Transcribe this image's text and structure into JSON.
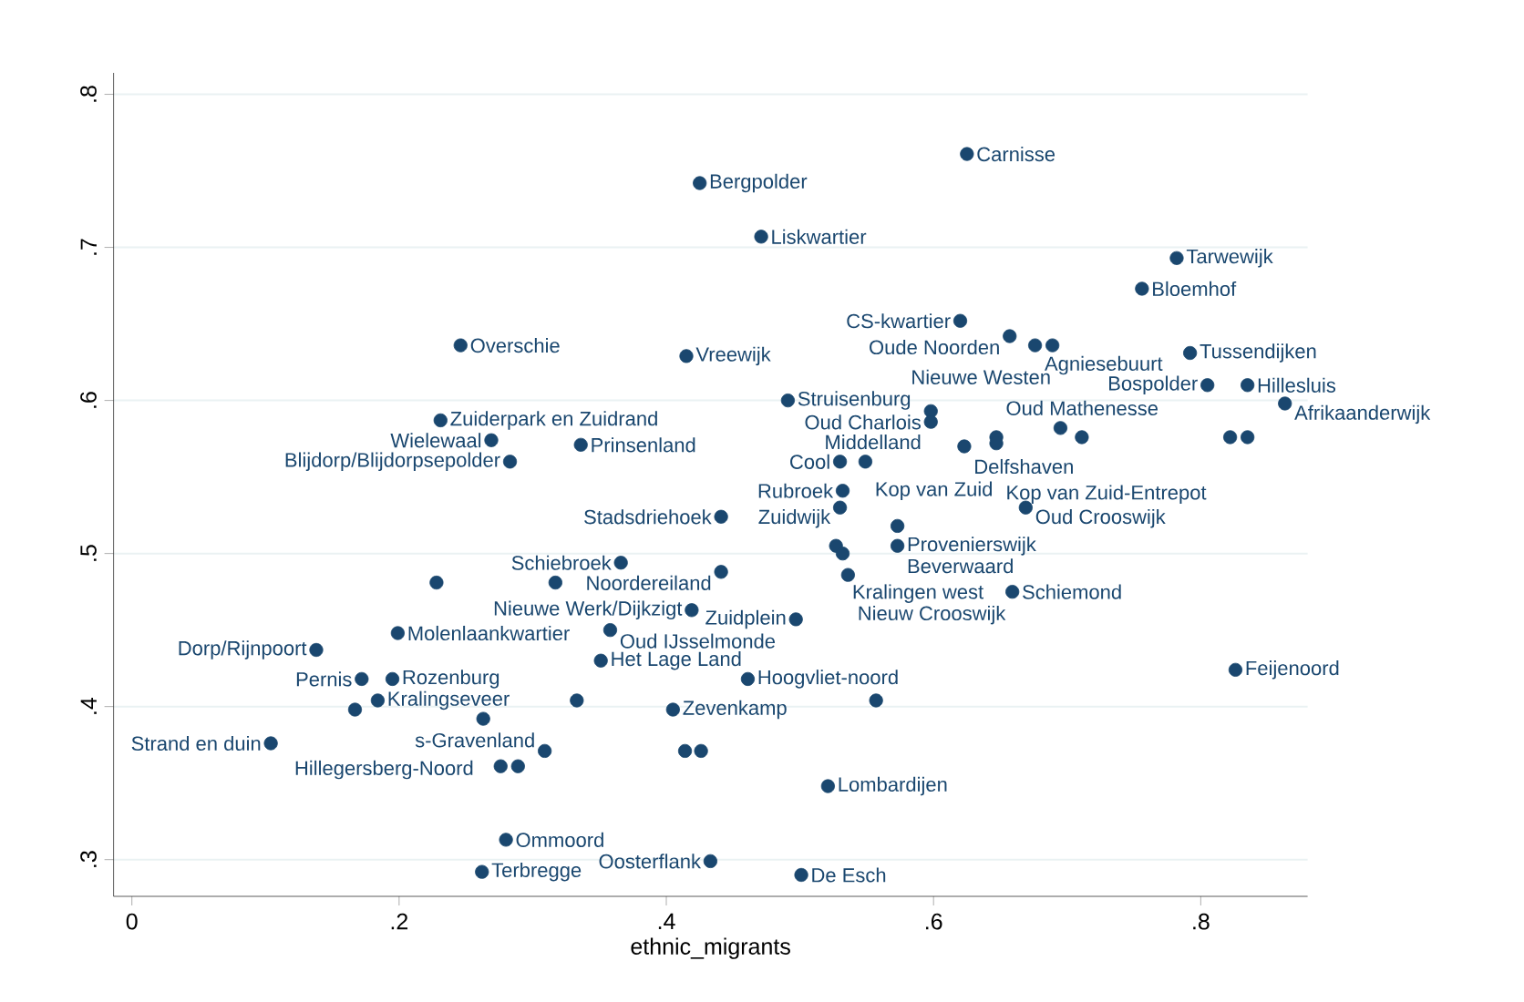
{
  "chart_data": {
    "type": "scatter",
    "xlabel": "ethnic_migrants",
    "grid": "y",
    "xlim": [
      -0.0137,
      0.88
    ],
    "ylim": [
      0.276,
      0.814
    ],
    "xticks": [
      {
        "value": 0,
        "label": "0"
      },
      {
        "value": 0.2,
        "label": ".2"
      },
      {
        "value": 0.4,
        "label": ".4"
      },
      {
        "value": 0.6,
        "label": ".6"
      },
      {
        "value": 0.8,
        "label": ".8"
      }
    ],
    "yticks": [
      {
        "value": 0.3,
        "label": ".3"
      },
      {
        "value": 0.4,
        "label": ".4"
      },
      {
        "value": 0.5,
        "label": ".5"
      },
      {
        "value": 0.6,
        "label": ".6"
      },
      {
        "value": 0.7,
        "label": ".7"
      },
      {
        "value": 0.8,
        "label": ".8"
      }
    ],
    "series": [
      {
        "color": "#1a476f",
        "x": [
          0.625,
          0.425,
          0.471,
          0.782,
          0.756,
          0.62,
          0.246,
          0.415,
          0.657,
          0.676,
          0.689,
          0.792,
          0.805,
          0.835,
          0.863,
          0.491,
          0.598,
          0.598,
          0.623,
          0.647,
          0.647,
          0.695,
          0.711,
          0.822,
          0.835,
          0.53,
          0.549,
          0.231,
          0.269,
          0.336,
          0.283,
          0.532,
          0.53,
          0.669,
          0.441,
          0.573,
          0.527,
          0.532,
          0.573,
          0.366,
          0.441,
          0.536,
          0.228,
          0.317,
          0.659,
          0.419,
          0.497,
          0.199,
          0.358,
          0.138,
          0.351,
          0.826,
          0.172,
          0.195,
          0.461,
          0.184,
          0.333,
          0.557,
          0.167,
          0.405,
          0.263,
          0.104,
          0.309,
          0.414,
          0.426,
          0.276,
          0.289,
          0.521,
          0.28,
          0.433,
          0.262,
          0.501
        ],
        "values": [
          0.761,
          0.742,
          0.707,
          0.693,
          0.673,
          0.652,
          0.636,
          0.629,
          0.642,
          0.636,
          0.636,
          0.631,
          0.61,
          0.61,
          0.598,
          0.6,
          0.593,
          0.586,
          0.57,
          0.576,
          0.572,
          0.582,
          0.576,
          0.576,
          0.576,
          0.56,
          0.56,
          0.587,
          0.574,
          0.571,
          0.56,
          0.541,
          0.53,
          0.53,
          0.524,
          0.518,
          0.505,
          0.5,
          0.505,
          0.494,
          0.488,
          0.486,
          0.481,
          0.481,
          0.475,
          0.463,
          0.457,
          0.448,
          0.45,
          0.437,
          0.43,
          0.424,
          0.418,
          0.418,
          0.418,
          0.404,
          0.404,
          0.404,
          0.398,
          0.398,
          0.392,
          0.376,
          0.371,
          0.371,
          0.371,
          0.361,
          0.361,
          0.348,
          0.313,
          0.299,
          0.292,
          0.29
        ]
      }
    ],
    "annotations": [
      {
        "text": "Carnisse",
        "x": 0.625,
        "y": 0.761
      },
      {
        "text": "Bergpolder",
        "x": 0.425,
        "y": 0.742
      },
      {
        "text": "Liskwartier",
        "x": 0.471,
        "y": 0.707
      },
      {
        "text": "Tarwewijk",
        "x": 0.782,
        "y": 0.693
      },
      {
        "text": "Bloemhof",
        "x": 0.756,
        "y": 0.673
      },
      {
        "text": "CS-kwartier",
        "x": 0.62,
        "y": 0.652
      },
      {
        "text": "Overschie",
        "x": 0.246,
        "y": 0.636
      },
      {
        "text": "Vreewijk",
        "x": 0.415,
        "y": 0.629
      },
      {
        "text": "Oude Noorden",
        "x": 0.657,
        "y": 0.642
      },
      {
        "text": "Agniesebuurt",
        "x": 0.676,
        "y": 0.636
      },
      {
        "text": "Delfshaven",
        "x": 0.623,
        "y": 0.57
      },
      {
        "text": "Oud Mathenesse",
        "x": 0.647,
        "y": 0.576
      },
      {
        "text": "Kop van Zuid-Entrepot",
        "x": 0.647,
        "y": 0.572
      },
      {
        "text": "Pernis",
        "x": 0.172,
        "y": 0.418
      },
      {
        "text": "Zevenkamp",
        "x": 0.405,
        "y": 0.398
      },
      {
        "text": "s-Gravenland",
        "x": 0.309,
        "y": 0.371
      },
      {
        "text": "Tussendijken",
        "x": 0.792,
        "y": 0.631
      },
      {
        "text": "Bospolder",
        "x": 0.805,
        "y": 0.61
      },
      {
        "text": "Hillesluis",
        "x": 0.835,
        "y": 0.61
      },
      {
        "text": "Afrikaanderwijk",
        "x": 0.863,
        "y": 0.598
      },
      {
        "text": "Struisenburg",
        "x": 0.491,
        "y": 0.6
      },
      {
        "text": "Oud Charlois",
        "x": 0.598,
        "y": 0.593
      },
      {
        "text": "Middelland",
        "x": 0.598,
        "y": 0.586
      },
      {
        "text": "Nieuwe Westen",
        "x": 0.695,
        "y": 0.582
      },
      {
        "text": "Cool",
        "x": 0.53,
        "y": 0.56
      },
      {
        "text": "Kop van Zuid",
        "x": 0.549,
        "y": 0.56
      },
      {
        "text": "Zuiderpark en Zuidrand",
        "x": 0.231,
        "y": 0.587
      },
      {
        "text": "Wielewaal",
        "x": 0.269,
        "y": 0.574
      },
      {
        "text": "Prinsenland",
        "x": 0.336,
        "y": 0.571
      },
      {
        "text": "Blijdorp/Blijdorpsepolder",
        "x": 0.283,
        "y": 0.56
      },
      {
        "text": "Rubroek",
        "x": 0.532,
        "y": 0.541
      },
      {
        "text": "Zuidwijk",
        "x": 0.53,
        "y": 0.53
      },
      {
        "text": "Oud Crooswijk",
        "x": 0.669,
        "y": 0.53
      },
      {
        "text": "Stadsdriehoek",
        "x": 0.441,
        "y": 0.524
      },
      {
        "text": "Provenierswijk",
        "x": 0.573,
        "y": 0.518
      },
      {
        "text": "Kralingen west",
        "x": 0.532,
        "y": 0.5
      },
      {
        "text": "Beverwaard",
        "x": 0.573,
        "y": 0.505
      },
      {
        "text": "Schiebroek",
        "x": 0.366,
        "y": 0.494
      },
      {
        "text": "Noordereiland",
        "x": 0.441,
        "y": 0.488
      },
      {
        "text": "Nieuw Crooswijk",
        "x": 0.536,
        "y": 0.486
      },
      {
        "text": "Schiemond",
        "x": 0.659,
        "y": 0.475
      },
      {
        "text": "Nieuwe Werk/Dijkzigt",
        "x": 0.419,
        "y": 0.463
      },
      {
        "text": "Zuidplein",
        "x": 0.497,
        "y": 0.457
      },
      {
        "text": "Molenlaankwartier",
        "x": 0.199,
        "y": 0.448
      },
      {
        "text": "Oud IJsselmonde",
        "x": 0.358,
        "y": 0.45
      },
      {
        "text": "Dorp/Rijnpoort",
        "x": 0.138,
        "y": 0.437
      },
      {
        "text": "Het Lage Land",
        "x": 0.351,
        "y": 0.43
      },
      {
        "text": "Feijenoord",
        "x": 0.826,
        "y": 0.424
      },
      {
        "text": "Rozenburg",
        "x": 0.195,
        "y": 0.418
      },
      {
        "text": "Hoogvliet-noord",
        "x": 0.461,
        "y": 0.418
      },
      {
        "text": "Kralingseveer",
        "x": 0.184,
        "y": 0.404
      },
      {
        "text": "Hillegersberg-Noord",
        "x": 0.263,
        "y": 0.392
      },
      {
        "text": "Strand en duin",
        "x": 0.104,
        "y": 0.376
      },
      {
        "text": "Lombardijen",
        "x": 0.521,
        "y": 0.348
      },
      {
        "text": "Ommoord",
        "x": 0.28,
        "y": 0.313
      },
      {
        "text": "Oosterflank",
        "x": 0.433,
        "y": 0.299
      },
      {
        "text": "Terbregge",
        "x": 0.262,
        "y": 0.292
      },
      {
        "text": "De Esch",
        "x": 0.501,
        "y": 0.29
      }
    ]
  }
}
